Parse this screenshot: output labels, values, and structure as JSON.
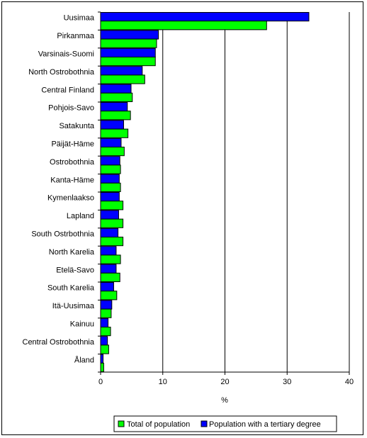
{
  "colors": {
    "total": "#00ff00",
    "tertiary": "#0000ff"
  },
  "chart_data": {
    "type": "bar",
    "orientation": "horizontal",
    "categories": [
      "Uusimaa",
      "Pirkanmaa",
      "Varsinais-Suomi",
      "North Ostrobothnia",
      "Central Finland",
      "Pohjois-Savo",
      "Satakunta",
      "Päijät-Häme",
      "Ostrobothnia",
      "Kanta-Häme",
      "Kymenlaakso",
      "Lapland",
      "South Ostrbothnia",
      "North Karelia",
      "Etelä-Savo",
      "South Karelia",
      "Itä-Uusimaa",
      "Kainuu",
      "Central Ostrobothnia",
      "Åland"
    ],
    "series": [
      {
        "name": "Population with a tertiary degree",
        "values": [
          33.5,
          9.3,
          8.8,
          6.7,
          4.9,
          4.3,
          3.7,
          3.3,
          3.1,
          3.0,
          3.0,
          2.9,
          2.8,
          2.5,
          2.5,
          2.1,
          1.8,
          1.2,
          1.1,
          0.4
        ]
      },
      {
        "name": "Total of population",
        "values": [
          26.7,
          9.0,
          8.8,
          7.1,
          5.1,
          4.8,
          4.4,
          3.8,
          3.2,
          3.2,
          3.6,
          3.6,
          3.6,
          3.2,
          3.1,
          2.6,
          1.7,
          1.6,
          1.3,
          0.5
        ]
      }
    ],
    "x_ticks": [
      "0",
      "10",
      "20",
      "30",
      "40"
    ],
    "xlabel": "%",
    "xlim": [
      0,
      40
    ],
    "grid": "vertical",
    "legend": [
      "Total of population",
      "Population with a tertiary degree"
    ],
    "legend_placement": "bottom-center"
  }
}
